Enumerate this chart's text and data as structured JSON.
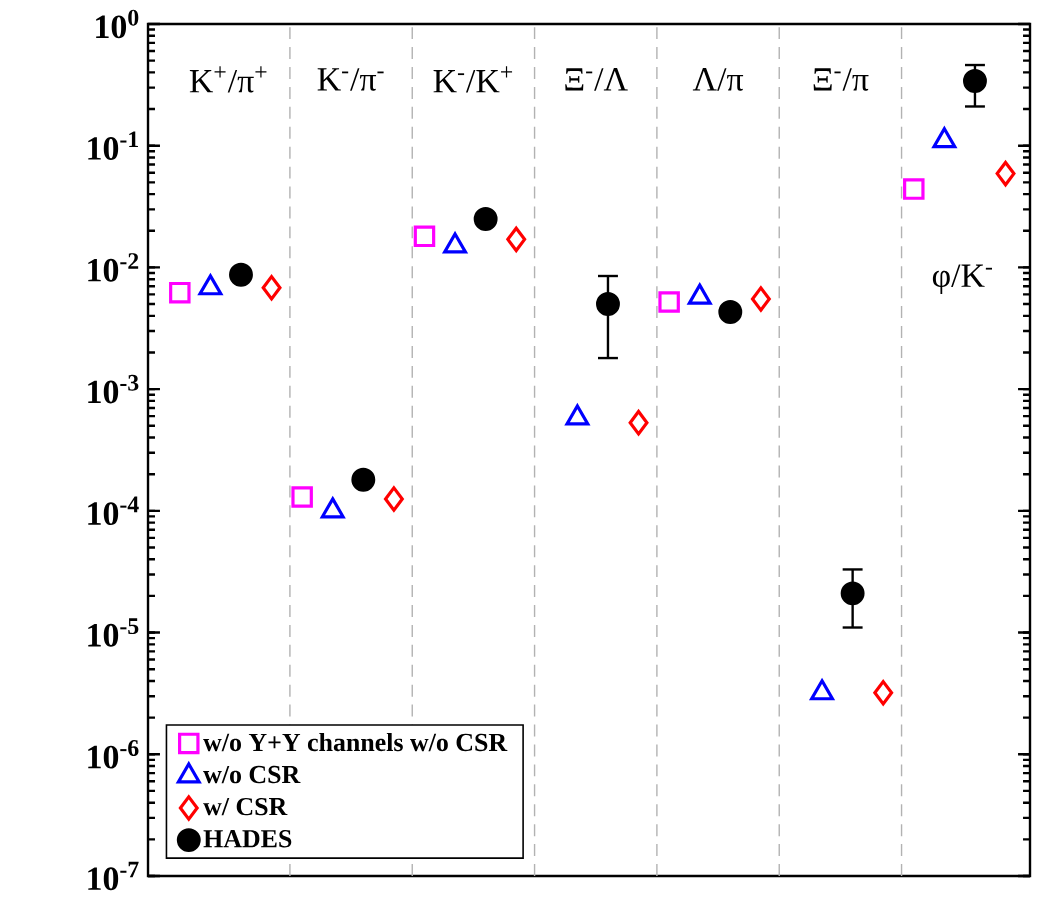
{
  "chart_data": {
    "type": "scatter",
    "categories": [
      "K$^{+}$/π$^{+}$",
      "K$^{-}$/π$^{-}$",
      "K$^{-}$/K$^{+}$",
      "Ξ$^{-}$/Λ",
      "Λ/π",
      "Ξ$^{-}$/π",
      "φ/K$^{-}$"
    ],
    "series": [
      {
        "name": "w/o Y+Y channels w/o CSR",
        "color": "#ff00ff",
        "marker": "square",
        "values": [
          0.0062,
          0.00013,
          0.018,
          null,
          0.0052,
          null,
          0.044
        ]
      },
      {
        "name": "w/o CSR",
        "color": "#0000ff",
        "marker": "triangle",
        "values": [
          0.0068,
          0.0001,
          0.015,
          0.00058,
          0.0057,
          3.2e-06,
          0.11
        ]
      },
      {
        "name": "w/ CSR",
        "color": "#ff0000",
        "marker": "diamond",
        "values": [
          0.0068,
          0.000125,
          0.017,
          0.00053,
          0.0055,
          3.2e-06,
          0.059
        ]
      },
      {
        "name": "HADES",
        "color": "#000000",
        "marker": "circle",
        "values": [
          0.0087,
          0.00018,
          0.025,
          0.005,
          0.0043,
          2.1e-05,
          0.34
        ],
        "errors": [
          null,
          null,
          null,
          [
            0.0018,
            0.0085
          ],
          null,
          [
            1.1e-05,
            3.3e-05
          ],
          [
            0.21,
            0.46
          ]
        ]
      }
    ],
    "log": "y",
    "ylim": [
      1e-07,
      1
    ],
    "yticks": [
      {
        "value": 1e-07,
        "label": "10$^{-7}$"
      },
      {
        "value": 1e-06,
        "label": "10$^{-6}$"
      },
      {
        "value": 1e-05,
        "label": "10$^{-5}$"
      },
      {
        "value": 0.0001,
        "label": "10$^{-4}$"
      },
      {
        "value": 0.001,
        "label": "10$^{-3}$"
      },
      {
        "value": 0.01,
        "label": "10$^{-2}$"
      },
      {
        "value": 0.1,
        "label": "10$^{-1}$"
      },
      {
        "value": 1,
        "label": "10$^{0}$"
      }
    ],
    "tick_labels": "y",
    "grid": "x",
    "legend": "bottom left"
  }
}
